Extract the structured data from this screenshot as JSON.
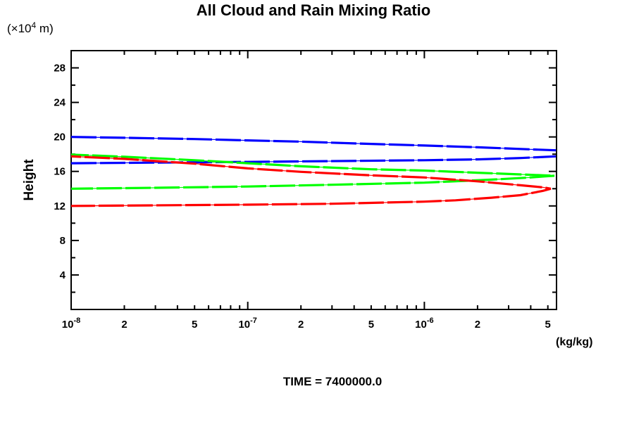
{
  "chart_data": {
    "type": "line",
    "title": "All Cloud and Rain Mixing Ratio",
    "caption": "TIME = 7400000.0",
    "grid": false,
    "legend": null,
    "x_axis": {
      "scale": "log",
      "min": 1e-08,
      "max": 5.6e-06,
      "unit_label": "(kg/kg)",
      "decade_exponents": [
        -8,
        -7,
        -6
      ],
      "tick_labels": [
        {
          "value": 1e-08,
          "base": "10",
          "exp": "-8"
        },
        {
          "value": 2e-08,
          "text": "2"
        },
        {
          "value": 5e-08,
          "text": "5"
        },
        {
          "value": 1e-07,
          "base": "10",
          "exp": "-7"
        },
        {
          "value": 2e-07,
          "text": "2"
        },
        {
          "value": 5e-07,
          "text": "5"
        },
        {
          "value": 1e-06,
          "base": "10",
          "exp": "-6"
        },
        {
          "value": 2e-06,
          "text": "2"
        },
        {
          "value": 5e-06,
          "text": "5"
        }
      ]
    },
    "y_axis": {
      "scale": "linear",
      "min": 0,
      "max": 30,
      "minor_step": 2,
      "label_step": 4,
      "title": "Height",
      "unit": {
        "pre": "(×10",
        "exp": "4",
        "post": " m)"
      },
      "tick_labels": [
        {
          "value": 4,
          "text": "4"
        },
        {
          "value": 8,
          "text": "8"
        },
        {
          "value": 12,
          "text": "12"
        },
        {
          "value": 16,
          "text": "16"
        },
        {
          "value": 20,
          "text": "20"
        },
        {
          "value": 24,
          "text": "24"
        },
        {
          "value": 28,
          "text": "28"
        }
      ]
    },
    "axis_color": "#000000",
    "series": [
      {
        "name": "blue-profile",
        "color": "#0000ff",
        "clipped_at_right": true,
        "paths": [
          [
            [
              1e-08,
              20.0
            ],
            [
              2e-08,
              19.9
            ],
            [
              5e-08,
              19.75
            ],
            [
              1e-07,
              19.6
            ],
            [
              2e-07,
              19.45
            ],
            [
              4e-07,
              19.25
            ],
            [
              1e-06,
              19.0
            ],
            [
              2e-06,
              18.8
            ],
            [
              3.5e-06,
              18.6
            ],
            [
              5.56e-06,
              18.45
            ]
          ],
          [
            [
              1e-08,
              16.95
            ],
            [
              1e-07,
              17.1
            ],
            [
              1e-06,
              17.3
            ],
            [
              2e-06,
              17.4
            ],
            [
              3.5e-06,
              17.55
            ],
            [
              5.56e-06,
              17.75
            ]
          ]
        ]
      },
      {
        "name": "green-profile",
        "color": "#00ff00",
        "clipped_at_right": false,
        "paths": [
          [
            [
              1e-08,
              17.95
            ],
            [
              2e-08,
              17.7
            ],
            [
              5e-08,
              17.3
            ],
            [
              1e-07,
              16.95
            ],
            [
              2e-07,
              16.6
            ],
            [
              5e-07,
              16.25
            ],
            [
              1e-06,
              16.1
            ],
            [
              2e-06,
              15.85
            ],
            [
              3.5e-06,
              15.65
            ],
            [
              4.8e-06,
              15.55
            ],
            [
              5.45e-06,
              15.5
            ],
            [
              4.8e-06,
              15.42
            ],
            [
              4e-06,
              15.3
            ],
            [
              2.4e-06,
              15.05
            ],
            [
              1e-06,
              14.7
            ],
            [
              3e-07,
              14.45
            ],
            [
              1e-07,
              14.25
            ],
            [
              3e-08,
              14.1
            ],
            [
              1e-08,
              14.0
            ]
          ]
        ]
      },
      {
        "name": "red-profile",
        "color": "#ff0000",
        "clipped_at_right": false,
        "paths": [
          [
            [
              1e-08,
              17.75
            ],
            [
              2e-08,
              17.45
            ],
            [
              5e-08,
              16.9
            ],
            [
              1e-07,
              16.35
            ],
            [
              2e-07,
              15.95
            ],
            [
              5e-07,
              15.55
            ],
            [
              1e-06,
              15.3
            ],
            [
              2e-06,
              14.85
            ],
            [
              3.5e-06,
              14.4
            ],
            [
              4.7e-06,
              14.15
            ],
            [
              5.2e-06,
              14.0
            ],
            [
              4.7e-06,
              13.75
            ],
            [
              3.5e-06,
              13.25
            ],
            [
              2.4e-06,
              12.95
            ],
            [
              1.5e-06,
              12.65
            ],
            [
              1e-06,
              12.5
            ],
            [
              3e-07,
              12.25
            ],
            [
              1e-07,
              12.15
            ],
            [
              1e-08,
              12.0
            ]
          ]
        ]
      }
    ]
  }
}
